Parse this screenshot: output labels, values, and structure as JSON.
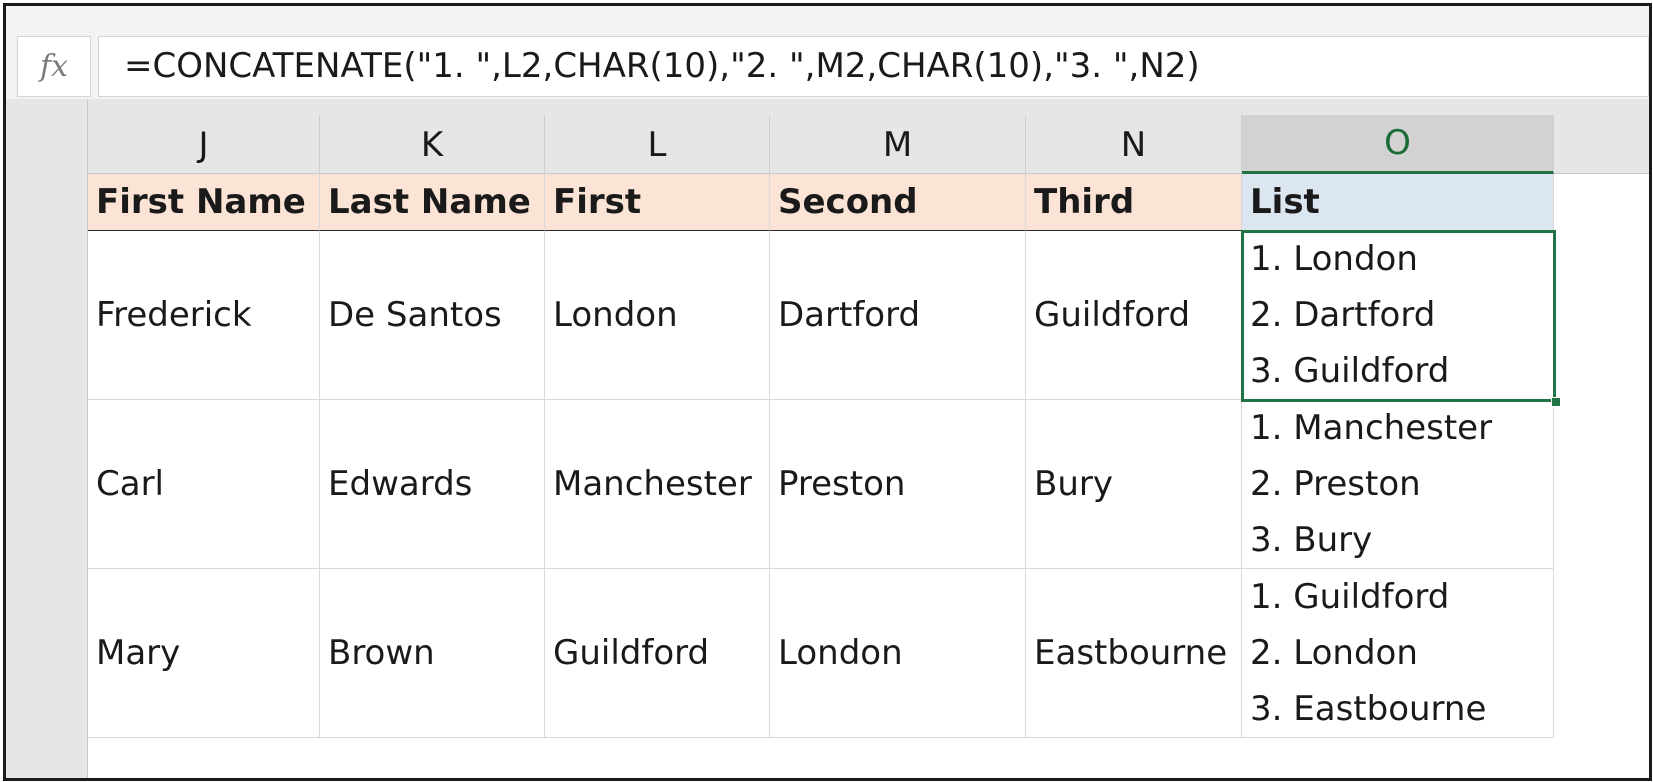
{
  "formula_bar": {
    "fx_label": "fx",
    "formula": "=CONCATENATE(\"1. \",L2,CHAR(10),\"2. \",M2,CHAR(10),\"3. \",N2)"
  },
  "columns": [
    "J",
    "K",
    "L",
    "M",
    "N",
    "O"
  ],
  "selected_column": "O",
  "header_row": {
    "first_name": "First Name",
    "last_name": "Last Name",
    "first": "First",
    "second": "Second",
    "third": "Third",
    "list": "List"
  },
  "rows": [
    {
      "first_name": "Frederick",
      "last_name": "De Santos",
      "first": "London",
      "second": "Dartford",
      "third": "Guildford",
      "list": [
        "1. London",
        "2. Dartford",
        "3. Guildford"
      ]
    },
    {
      "first_name": "Carl",
      "last_name": "Edwards",
      "first": "Manchester",
      "second": "Preston",
      "third": "Bury",
      "list": [
        "1. Manchester",
        "2. Preston",
        "3. Bury"
      ]
    },
    {
      "first_name": "Mary",
      "last_name": "Brown",
      "first": "Guildford",
      "second": "London",
      "third": "Eastbourne",
      "list": [
        "1. Guildford",
        "2. London",
        "3. Eastbourne"
      ]
    }
  ],
  "colors": {
    "header_fill": "#fbe4d5",
    "list_header_fill": "#dce6f1",
    "selection_green": "#217346"
  }
}
